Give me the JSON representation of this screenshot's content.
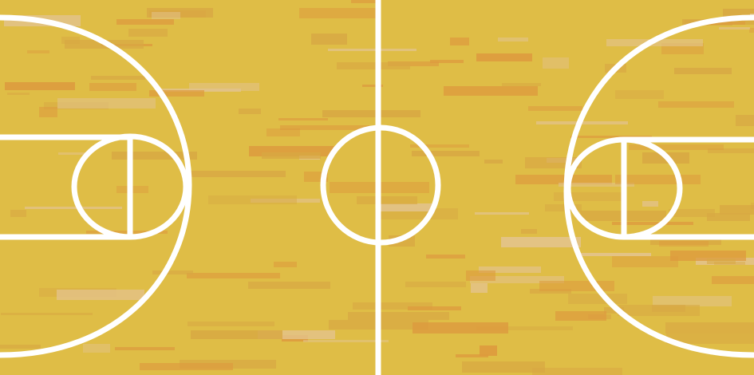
{
  "court": {
    "type": "basketball-court",
    "colors": {
      "floor": "#dfbd46",
      "plank_dark": "#dd9a3e",
      "plank_mid": "#d8a843",
      "plank_light": "#e3c38c",
      "lines": "#ffffff"
    },
    "elements": [
      "center-line",
      "center-circle",
      "left-three-point-arc",
      "left-key",
      "left-free-throw-circle",
      "right-three-point-arc",
      "right-key",
      "right-free-throw-circle"
    ]
  }
}
